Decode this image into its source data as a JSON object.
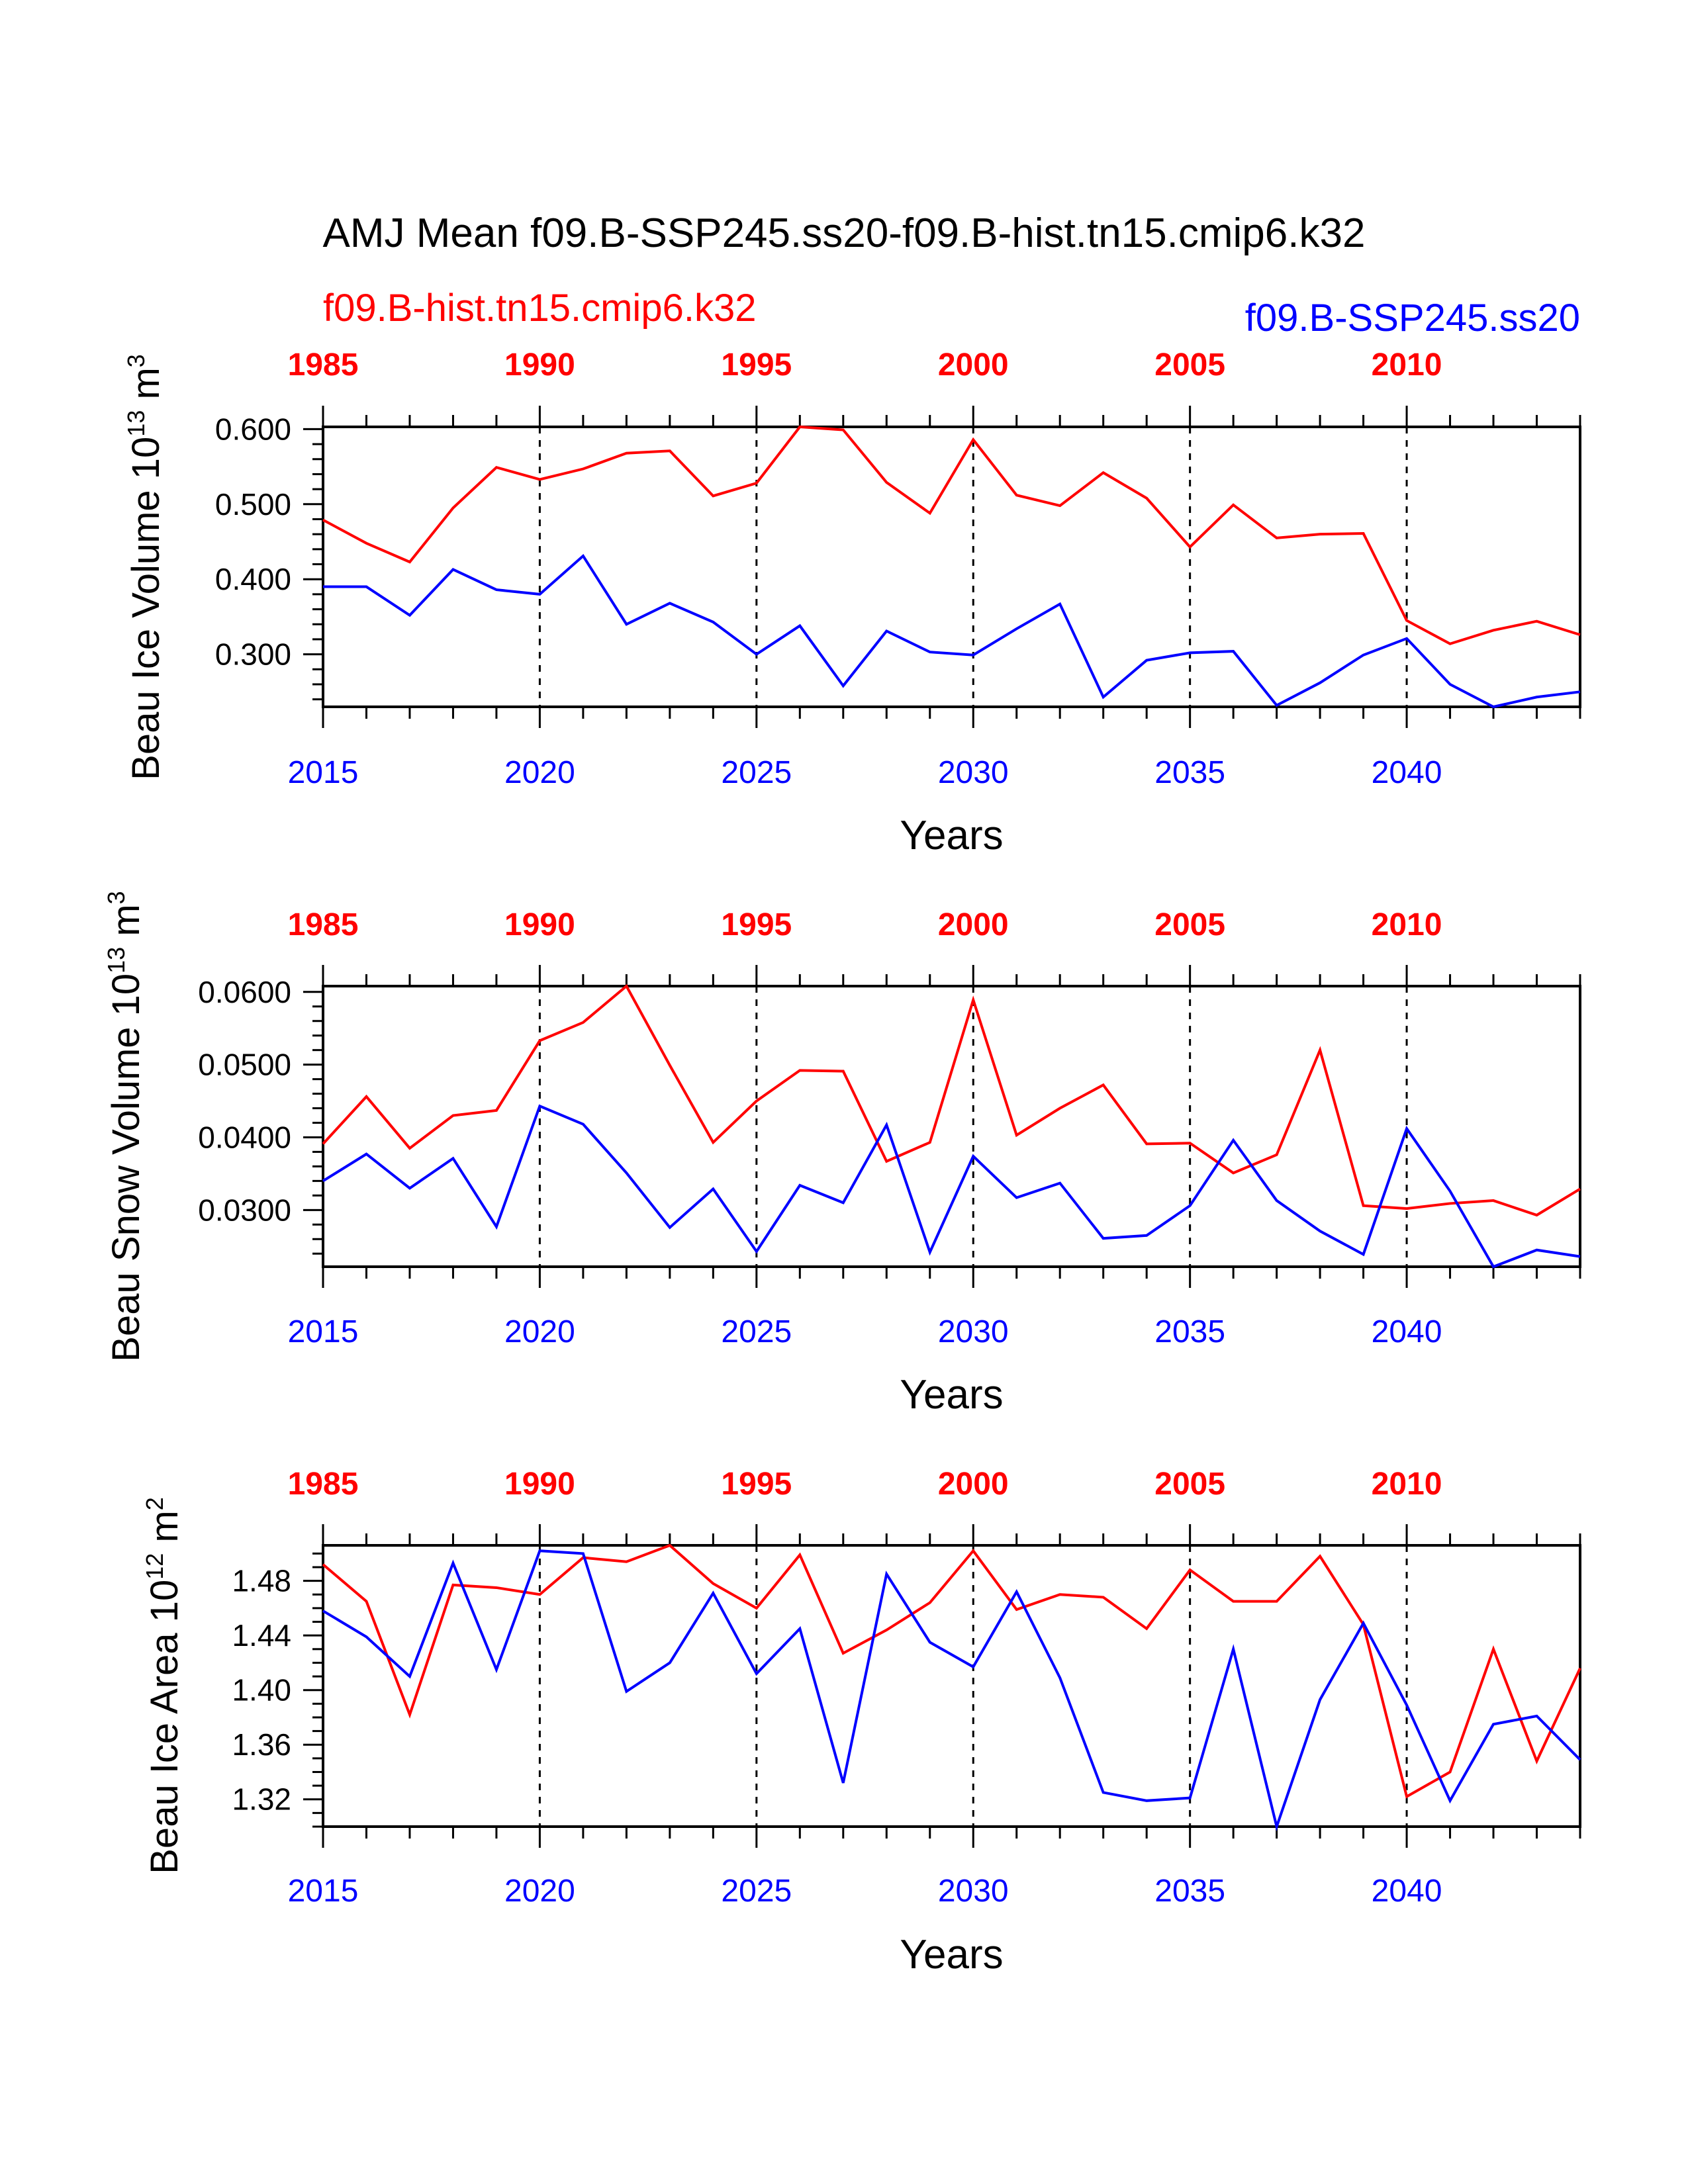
{
  "title": "AMJ Mean f09.B-SSP245.ss20-f09.B-hist.tn15.cmip6.k32",
  "legend": {
    "hist_label": "f09.B-hist.tn15.cmip6.k32",
    "ssp_label": "f09.B-SSP245.ss20"
  },
  "colors": {
    "hist": "#ff0000",
    "ssp": "#0000ff",
    "axis": "#000000"
  },
  "chart_data": [
    {
      "type": "line",
      "ylabel": "Beau Ice Volume 10",
      "ylabel_exp": "13",
      "ylabel_unit": " m",
      "ylabel_unit_exp": "3",
      "xlabel": "Years",
      "xlim": [
        2015,
        2044
      ],
      "ylim": [
        0.23,
        0.603
      ],
      "yticks": [
        0.3,
        0.4,
        0.5,
        0.6
      ],
      "ytick_labels": [
        "0.300",
        "0.400",
        "0.500",
        "0.600"
      ],
      "yminor_step": 0.02,
      "x": [
        2015,
        2016,
        2017,
        2018,
        2019,
        2020,
        2021,
        2022,
        2023,
        2024,
        2025,
        2026,
        2027,
        2028,
        2029,
        2030,
        2031,
        2032,
        2033,
        2034,
        2035,
        2036,
        2037,
        2038,
        2039,
        2040,
        2041,
        2042,
        2043,
        2044
      ],
      "series": [
        {
          "values": [
            0.479,
            0.448,
            0.423,
            0.495,
            0.549,
            0.533,
            0.547,
            0.568,
            0.571,
            0.511,
            0.528,
            0.603,
            0.599,
            0.529,
            0.488,
            0.586,
            0.512,
            0.498,
            0.542,
            0.508,
            0.443,
            0.499,
            0.455,
            0.46,
            0.461,
            0.345,
            0.314,
            0.332,
            0.344,
            0.326
          ],
          "color": "hist"
        },
        {
          "values": [
            0.39,
            0.39,
            0.352,
            0.413,
            0.386,
            0.38,
            0.431,
            0.34,
            0.368,
            0.343,
            0.3,
            0.338,
            0.258,
            0.331,
            0.303,
            0.299,
            0.334,
            0.367,
            0.243,
            0.292,
            0.302,
            0.304,
            0.232,
            0.262,
            0.299,
            0.321,
            0.26,
            0.23,
            0.243,
            0.25
          ],
          "color": "ssp"
        }
      ]
    },
    {
      "type": "line",
      "ylabel": "Beau Snow Volume 10",
      "ylabel_exp": "13",
      "ylabel_unit": " m",
      "ylabel_unit_exp": "3",
      "xlabel": "Years",
      "xlim": [
        2015,
        2044
      ],
      "ylim": [
        0.0222,
        0.0608
      ],
      "yticks": [
        0.03,
        0.04,
        0.05,
        0.06
      ],
      "ytick_labels": [
        "0.0300",
        "0.0400",
        "0.0500",
        "0.0600"
      ],
      "yminor_step": 0.002,
      "x": [
        2015,
        2016,
        2017,
        2018,
        2019,
        2020,
        2021,
        2022,
        2023,
        2024,
        2025,
        2026,
        2027,
        2028,
        2029,
        2030,
        2031,
        2032,
        2033,
        2034,
        2035,
        2036,
        2037,
        2038,
        2039,
        2040,
        2041,
        2042,
        2043,
        2044
      ],
      "series": [
        {
          "values": [
            0.0391,
            0.0456,
            0.0385,
            0.043,
            0.0437,
            0.0533,
            0.0558,
            0.0608,
            0.0499,
            0.0393,
            0.045,
            0.0492,
            0.0491,
            0.0367,
            0.0393,
            0.0589,
            0.0403,
            0.044,
            0.0472,
            0.0391,
            0.0392,
            0.0351,
            0.0376,
            0.052,
            0.0306,
            0.0302,
            0.0309,
            0.0313,
            0.0293,
            0.0329
          ],
          "color": "hist"
        },
        {
          "values": [
            0.034,
            0.0377,
            0.033,
            0.0371,
            0.0277,
            0.0443,
            0.0418,
            0.0351,
            0.0276,
            0.0329,
            0.0243,
            0.0334,
            0.031,
            0.0417,
            0.0242,
            0.0374,
            0.0317,
            0.0337,
            0.0261,
            0.0265,
            0.0306,
            0.0396,
            0.0313,
            0.0271,
            0.0239,
            0.0412,
            0.0326,
            0.0222,
            0.0245,
            0.0236
          ],
          "color": "ssp"
        }
      ]
    },
    {
      "type": "line",
      "ylabel": "Beau Ice Area 10",
      "ylabel_exp": "12",
      "ylabel_unit": " m",
      "ylabel_unit_exp": "2",
      "xlabel": "Years",
      "xlim": [
        2015,
        2044
      ],
      "ylim": [
        1.3,
        1.506
      ],
      "yticks": [
        1.32,
        1.36,
        1.4,
        1.44,
        1.48
      ],
      "ytick_labels": [
        "1.32",
        "1.36",
        "1.40",
        "1.44",
        "1.48"
      ],
      "yminor_step": 0.01,
      "x": [
        2015,
        2016,
        2017,
        2018,
        2019,
        2020,
        2021,
        2022,
        2023,
        2024,
        2025,
        2026,
        2027,
        2028,
        2029,
        2030,
        2031,
        2032,
        2033,
        2034,
        2035,
        2036,
        2037,
        2038,
        2039,
        2040,
        2041,
        2042,
        2043,
        2044
      ],
      "series": [
        {
          "values": [
            1.492,
            1.465,
            1.382,
            1.477,
            1.475,
            1.47,
            1.497,
            1.494,
            1.506,
            1.478,
            1.46,
            1.499,
            1.427,
            1.444,
            1.464,
            1.502,
            1.459,
            1.47,
            1.468,
            1.445,
            1.488,
            1.465,
            1.465,
            1.498,
            1.448,
            1.322,
            1.34,
            1.43,
            1.348,
            1.416
          ],
          "color": "hist"
        },
        {
          "values": [
            1.458,
            1.439,
            1.41,
            1.493,
            1.415,
            1.502,
            1.5,
            1.399,
            1.42,
            1.471,
            1.412,
            1.445,
            1.332,
            1.485,
            1.435,
            1.417,
            1.472,
            1.409,
            1.325,
            1.319,
            1.321,
            1.43,
            1.3,
            1.393,
            1.449,
            1.389,
            1.319,
            1.375,
            1.381,
            1.349
          ],
          "color": "ssp"
        }
      ]
    }
  ],
  "bottom_ticks": [
    "2015",
    "2020",
    "2025",
    "2030",
    "2035",
    "2040"
  ],
  "bottom_tick_years": [
    2015,
    2020,
    2025,
    2030,
    2035,
    2040
  ],
  "top_ticks": [
    "1985",
    "1990",
    "1995",
    "2000",
    "2005",
    "2010"
  ]
}
